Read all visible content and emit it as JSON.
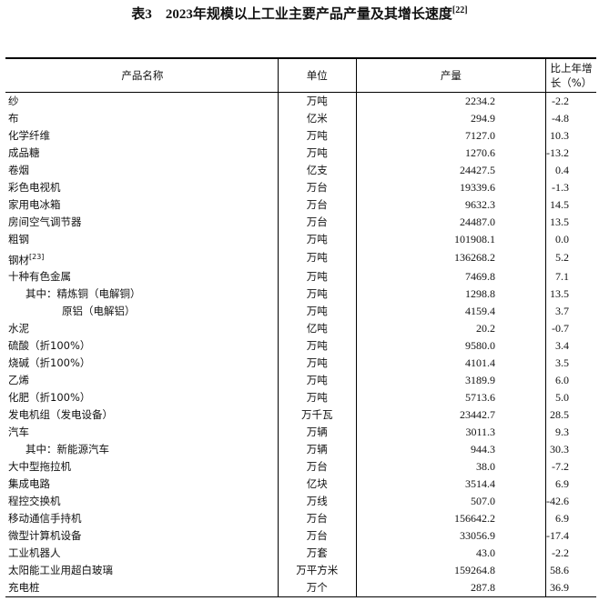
{
  "title": {
    "text": "表3　2023年规模以上工业主要产品产量及其增长速度",
    "note": "[22]"
  },
  "headers": [
    "产品名称",
    "单位",
    "产量",
    "比上年增长（%）"
  ],
  "rows": [
    {
      "name": "纱",
      "unit": "万吨",
      "output": "2234.2",
      "growth": "-2.2"
    },
    {
      "name": "布",
      "unit": "亿米",
      "output": "294.9",
      "growth": "-4.8"
    },
    {
      "name": "化学纤维",
      "unit": "万吨",
      "output": "7127.0",
      "growth": "10.3"
    },
    {
      "name": "成品糖",
      "unit": "万吨",
      "output": "1270.6",
      "growth": "-13.2"
    },
    {
      "name": "卷烟",
      "unit": "亿支",
      "output": "24427.5",
      "growth": "0.4"
    },
    {
      "name": "彩色电视机",
      "unit": "万台",
      "output": "19339.6",
      "growth": "-1.3"
    },
    {
      "name": "家用电冰箱",
      "unit": "万台",
      "output": "9632.3",
      "growth": "14.5"
    },
    {
      "name": "房间空气调节器",
      "unit": "万台",
      "output": "24487.0",
      "growth": "13.5"
    },
    {
      "name": "粗钢",
      "unit": "万吨",
      "output": "101908.1",
      "growth": "0.0"
    },
    {
      "name": "钢材",
      "note": "[23]",
      "unit": "万吨",
      "output": "136268.2",
      "growth": "5.2"
    },
    {
      "name": "十种有色金属",
      "unit": "万吨",
      "output": "7469.8",
      "growth": "7.1"
    },
    {
      "name": "其中：精炼铜（电解铜）",
      "indent": 1,
      "unit": "万吨",
      "output": "1298.8",
      "growth": "13.5"
    },
    {
      "name": "原铝（电解铝）",
      "indent": 2,
      "unit": "万吨",
      "output": "4159.4",
      "growth": "3.7"
    },
    {
      "name": "水泥",
      "unit": "亿吨",
      "output": "20.2",
      "growth": "-0.7"
    },
    {
      "name": "硫酸（折100%）",
      "unit": "万吨",
      "output": "9580.0",
      "growth": "3.4"
    },
    {
      "name": "烧碱（折100%）",
      "unit": "万吨",
      "output": "4101.4",
      "growth": "3.5"
    },
    {
      "name": "乙烯",
      "unit": "万吨",
      "output": "3189.9",
      "growth": "6.0"
    },
    {
      "name": "化肥（折100%）",
      "unit": "万吨",
      "output": "5713.6",
      "growth": "5.0"
    },
    {
      "name": "发电机组（发电设备）",
      "unit": "万千瓦",
      "output": "23442.7",
      "growth": "28.5"
    },
    {
      "name": "汽车",
      "unit": "万辆",
      "output": "3011.3",
      "growth": "9.3"
    },
    {
      "name": "其中：新能源汽车",
      "indent": 1,
      "unit": "万辆",
      "output": "944.3",
      "growth": "30.3"
    },
    {
      "name": "大中型拖拉机",
      "unit": "万台",
      "output": "38.0",
      "growth": "-7.2"
    },
    {
      "name": "集成电路",
      "unit": "亿块",
      "output": "3514.4",
      "growth": "6.9"
    },
    {
      "name": "程控交换机",
      "unit": "万线",
      "output": "507.0",
      "growth": "-42.6"
    },
    {
      "name": "移动通信手持机",
      "unit": "万台",
      "output": "156642.2",
      "growth": "6.9"
    },
    {
      "name": "微型计算机设备",
      "unit": "万台",
      "output": "33056.9",
      "growth": "-17.4"
    },
    {
      "name": "工业机器人",
      "unit": "万套",
      "output": "43.0",
      "growth": "-2.2"
    },
    {
      "name": "太阳能工业用超白玻璃",
      "unit": "万平方米",
      "output": "159264.8",
      "growth": "58.6"
    },
    {
      "name": "充电桩",
      "unit": "万个",
      "output": "287.8",
      "growth": "36.9"
    }
  ]
}
